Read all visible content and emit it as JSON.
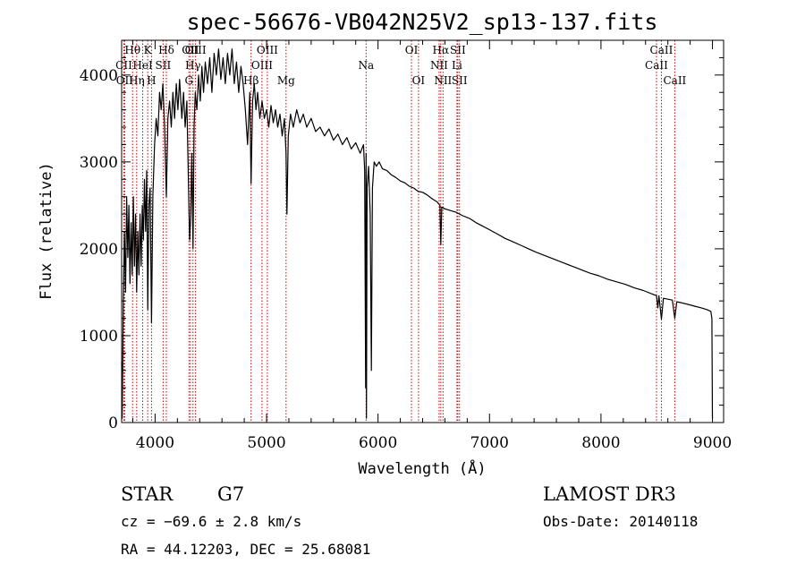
{
  "chart_data": {
    "type": "line",
    "title": "spec-56676-VB042N25V2_sp13-137.fits",
    "xlabel": "Wavelength (Å)",
    "ylabel": "Flux (relative)",
    "xlim": [
      3700,
      9100
    ],
    "ylim": [
      0,
      4400
    ],
    "x_ticks": [
      4000,
      5000,
      6000,
      7000,
      8000,
      9000
    ],
    "y_ticks": [
      0,
      1000,
      2000,
      3000,
      4000
    ],
    "x_minor_step": 200,
    "y_minor_step": 200,
    "series": [
      {
        "name": "flux",
        "color": "#000000",
        "points": [
          [
            3700,
            700
          ],
          [
            3705,
            50
          ],
          [
            3715,
            1400
          ],
          [
            3725,
            2200
          ],
          [
            3735,
            1500
          ],
          [
            3745,
            2600
          ],
          [
            3755,
            1900
          ],
          [
            3765,
            2500
          ],
          [
            3775,
            1600
          ],
          [
            3785,
            2300
          ],
          [
            3795,
            1700
          ],
          [
            3805,
            2600
          ],
          [
            3815,
            1800
          ],
          [
            3825,
            2400
          ],
          [
            3835,
            1500
          ],
          [
            3845,
            2200
          ],
          [
            3855,
            1700
          ],
          [
            3865,
            2400
          ],
          [
            3875,
            1800
          ],
          [
            3885,
            2500
          ],
          [
            3895,
            2100
          ],
          [
            3905,
            2800
          ],
          [
            3915,
            2200
          ],
          [
            3925,
            2900
          ],
          [
            3934,
            1300
          ],
          [
            3945,
            2500
          ],
          [
            3955,
            2700
          ],
          [
            3968,
            1150
          ],
          [
            3980,
            2600
          ],
          [
            3995,
            3200
          ],
          [
            4010,
            3500
          ],
          [
            4025,
            3300
          ],
          [
            4040,
            3800
          ],
          [
            4055,
            3600
          ],
          [
            4070,
            3900
          ],
          [
            4085,
            3400
          ],
          [
            4101,
            2600
          ],
          [
            4115,
            3500
          ],
          [
            4130,
            3700
          ],
          [
            4145,
            3400
          ],
          [
            4160,
            3800
          ],
          [
            4175,
            3500
          ],
          [
            4190,
            3900
          ],
          [
            4205,
            3600
          ],
          [
            4220,
            3950
          ],
          [
            4240,
            3500
          ],
          [
            4255,
            3800
          ],
          [
            4270,
            3400
          ],
          [
            4285,
            3700
          ],
          [
            4300,
            2700
          ],
          [
            4310,
            2100
          ],
          [
            4320,
            2400
          ],
          [
            4330,
            3100
          ],
          [
            4340,
            2000
          ],
          [
            4350,
            3400
          ],
          [
            4360,
            3800
          ],
          [
            4375,
            3600
          ],
          [
            4390,
            4000
          ],
          [
            4405,
            3700
          ],
          [
            4420,
            4100
          ],
          [
            4435,
            3800
          ],
          [
            4450,
            4150
          ],
          [
            4470,
            3900
          ],
          [
            4490,
            4200
          ],
          [
            4510,
            3800
          ],
          [
            4530,
            4250
          ],
          [
            4550,
            4000
          ],
          [
            4570,
            4300
          ],
          [
            4590,
            3950
          ],
          [
            4610,
            4200
          ],
          [
            4630,
            3900
          ],
          [
            4650,
            4250
          ],
          [
            4670,
            4000
          ],
          [
            4690,
            4300
          ],
          [
            4710,
            3900
          ],
          [
            4730,
            4150
          ],
          [
            4750,
            3800
          ],
          [
            4770,
            4100
          ],
          [
            4790,
            3900
          ],
          [
            4810,
            3600
          ],
          [
            4830,
            3200
          ],
          [
            4850,
            3800
          ],
          [
            4861,
            2750
          ],
          [
            4875,
            3700
          ],
          [
            4890,
            3900
          ],
          [
            4905,
            3600
          ],
          [
            4920,
            3800
          ],
          [
            4940,
            3500
          ],
          [
            4960,
            3700
          ],
          [
            4980,
            3500
          ],
          [
            5000,
            3600
          ],
          [
            5020,
            3400
          ],
          [
            5040,
            3650
          ],
          [
            5060,
            3450
          ],
          [
            5080,
            3600
          ],
          [
            5100,
            3400
          ],
          [
            5120,
            3550
          ],
          [
            5140,
            3300
          ],
          [
            5160,
            3500
          ],
          [
            5175,
            3100
          ],
          [
            5183,
            2400
          ],
          [
            5195,
            3300
          ],
          [
            5215,
            3550
          ],
          [
            5240,
            3400
          ],
          [
            5270,
            3600
          ],
          [
            5300,
            3450
          ],
          [
            5330,
            3550
          ],
          [
            5360,
            3400
          ],
          [
            5400,
            3500
          ],
          [
            5440,
            3350
          ],
          [
            5480,
            3400
          ],
          [
            5520,
            3300
          ],
          [
            5560,
            3380
          ],
          [
            5600,
            3250
          ],
          [
            5640,
            3320
          ],
          [
            5680,
            3200
          ],
          [
            5720,
            3280
          ],
          [
            5760,
            3150
          ],
          [
            5800,
            3220
          ],
          [
            5840,
            3100
          ],
          [
            5870,
            3200
          ],
          [
            5880,
            2900
          ],
          [
            5889,
            400
          ],
          [
            5893,
            3100
          ],
          [
            5896,
            50
          ],
          [
            5902,
            2700
          ],
          [
            5915,
            2950
          ],
          [
            5930,
            2400
          ],
          [
            5940,
            600
          ],
          [
            5950,
            2700
          ],
          [
            5965,
            3000
          ],
          [
            5985,
            2950
          ],
          [
            6010,
            3000
          ],
          [
            6040,
            2920
          ],
          [
            6080,
            2900
          ],
          [
            6120,
            2850
          ],
          [
            6160,
            2820
          ],
          [
            6200,
            2780
          ],
          [
            6240,
            2760
          ],
          [
            6280,
            2720
          ],
          [
            6320,
            2700
          ],
          [
            6360,
            2660
          ],
          [
            6400,
            2650
          ],
          [
            6440,
            2620
          ],
          [
            6480,
            2580
          ],
          [
            6530,
            2540
          ],
          [
            6555,
            2500
          ],
          [
            6563,
            2050
          ],
          [
            6572,
            2480
          ],
          [
            6600,
            2460
          ],
          [
            6650,
            2440
          ],
          [
            6700,
            2420
          ],
          [
            6760,
            2380
          ],
          [
            6820,
            2350
          ],
          [
            6880,
            2300
          ],
          [
            6940,
            2260
          ],
          [
            7000,
            2220
          ],
          [
            7070,
            2170
          ],
          [
            7140,
            2120
          ],
          [
            7210,
            2080
          ],
          [
            7280,
            2040
          ],
          [
            7350,
            2000
          ],
          [
            7420,
            1960
          ],
          [
            7500,
            1920
          ],
          [
            7580,
            1880
          ],
          [
            7660,
            1840
          ],
          [
            7740,
            1800
          ],
          [
            7820,
            1760
          ],
          [
            7900,
            1720
          ],
          [
            7980,
            1690
          ],
          [
            8060,
            1650
          ],
          [
            8140,
            1620
          ],
          [
            8220,
            1590
          ],
          [
            8300,
            1550
          ],
          [
            8380,
            1520
          ],
          [
            8460,
            1480
          ],
          [
            8498,
            1460
          ],
          [
            8510,
            1320
          ],
          [
            8520,
            1460
          ],
          [
            8542,
            1190
          ],
          [
            8560,
            1430
          ],
          [
            8600,
            1420
          ],
          [
            8640,
            1410
          ],
          [
            8662,
            1200
          ],
          [
            8680,
            1390
          ],
          [
            8720,
            1380
          ],
          [
            8780,
            1360
          ],
          [
            8840,
            1340
          ],
          [
            8900,
            1320
          ],
          [
            8950,
            1300
          ],
          [
            8985,
            1280
          ],
          [
            8995,
            1200
          ],
          [
            9000,
            50
          ]
        ]
      }
    ],
    "lines": [
      {
        "label": "Hθ",
        "wavelength": 3798,
        "row": 1,
        "style": "dotted"
      },
      {
        "label": "CII",
        "wavelength": 3720,
        "row": 2,
        "style": "dotted"
      },
      {
        "label": "OII",
        "wavelength": 3727,
        "row": 3,
        "style": "dotted"
      },
      {
        "label": "Hη",
        "wavelength": 3835,
        "row": 3,
        "style": "dotted"
      },
      {
        "label": "HeI",
        "wavelength": 3889,
        "row": 2,
        "style": "dotted"
      },
      {
        "label": "K",
        "wavelength": 3934,
        "row": 1,
        "style": "dotted"
      },
      {
        "label": "H",
        "wavelength": 3968,
        "row": 3,
        "style": "dotted"
      },
      {
        "label": "SII",
        "wavelength": 4072,
        "row": 2,
        "style": "dotted"
      },
      {
        "label": "Hδ",
        "wavelength": 4101,
        "row": 1,
        "style": "dotted"
      },
      {
        "label": "OII",
        "wavelength": 4317,
        "row": 1,
        "style": "dotted"
      },
      {
        "label": "G",
        "wavelength": 4304,
        "row": 3,
        "style": "dotted"
      },
      {
        "label": "Hγ",
        "wavelength": 4340,
        "row": 2,
        "style": "dotted"
      },
      {
        "label": "OIII",
        "wavelength": 4363,
        "row": 1,
        "style": "dotted"
      },
      {
        "label": "Hβ",
        "wavelength": 4861,
        "row": 3,
        "style": "dotted"
      },
      {
        "label": "OIII",
        "wavelength": 4959,
        "row": 2,
        "style": "dotted"
      },
      {
        "label": "OIII",
        "wavelength": 5007,
        "row": 1,
        "style": "dotted"
      },
      {
        "label": "Mg",
        "wavelength": 5175,
        "row": 3,
        "style": "dotted"
      },
      {
        "label": "Na",
        "wavelength": 5893,
        "row": 2,
        "style": "dotted"
      },
      {
        "label": "OI",
        "wavelength": 6300,
        "row": 1,
        "style": "dotted"
      },
      {
        "label": "OI",
        "wavelength": 6363,
        "row": 3,
        "style": "dotted"
      },
      {
        "label": "NII",
        "wavelength": 6548,
        "row": 2,
        "style": "dotted"
      },
      {
        "label": "Hα",
        "wavelength": 6563,
        "row": 1,
        "style": "dotted"
      },
      {
        "label": "NII",
        "wavelength": 6583,
        "row": 3,
        "style": "dotted"
      },
      {
        "label": "Li",
        "wavelength": 6708,
        "row": 2,
        "style": "dotted"
      },
      {
        "label": "SII",
        "wavelength": 6716,
        "row": 1,
        "style": "dotted"
      },
      {
        "label": "SII",
        "wavelength": 6731,
        "row": 3,
        "style": "dotted"
      },
      {
        "label": "CaII",
        "wavelength": 8498,
        "row": 2,
        "style": "dotted"
      },
      {
        "label": "CaII",
        "wavelength": 8542,
        "row": 1,
        "style": "dotted"
      },
      {
        "label": "CaII",
        "wavelength": 8662,
        "row": 3,
        "style": "dotted"
      }
    ],
    "line_color": "#cc0000"
  },
  "info": {
    "object_class": "STAR",
    "subclass": "G7",
    "cz": "cz = −69.6 ± 2.8 km/s",
    "coords": "RA =  44.12203, DEC =  25.68081",
    "survey": "LAMOST DR3",
    "obs_date": "Obs-Date: 20140118"
  }
}
